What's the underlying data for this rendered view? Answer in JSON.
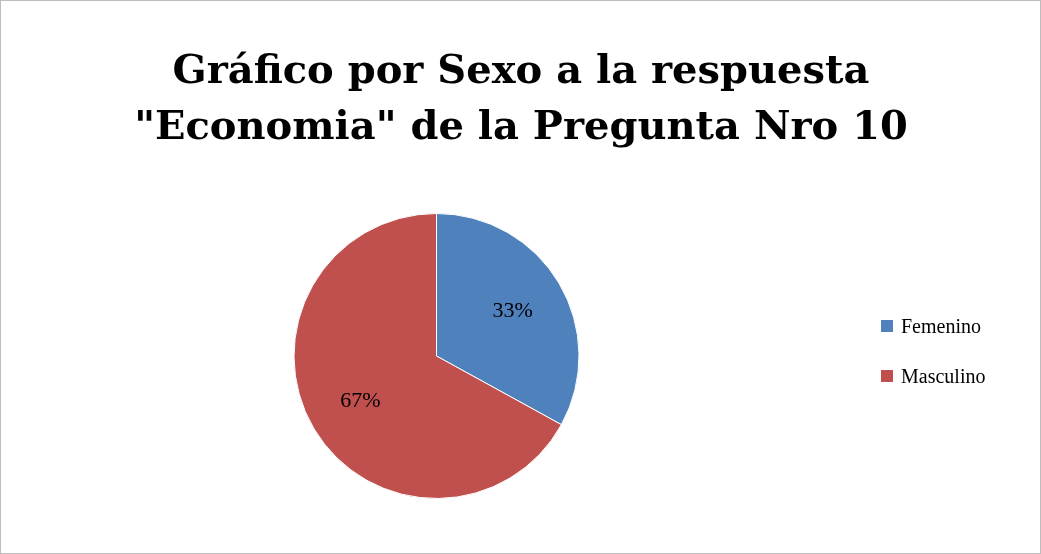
{
  "chart_data": {
    "type": "pie",
    "title": "Gráfico por Sexo a la respuesta \"Economia\" de la Pregunta Nro 10",
    "categories": [
      "Femenino",
      "Masculino"
    ],
    "values": [
      33,
      67
    ],
    "colors": [
      "#4f81bd",
      "#c0504d"
    ],
    "value_labels": [
      "33%",
      "67%"
    ],
    "legend": "right"
  }
}
